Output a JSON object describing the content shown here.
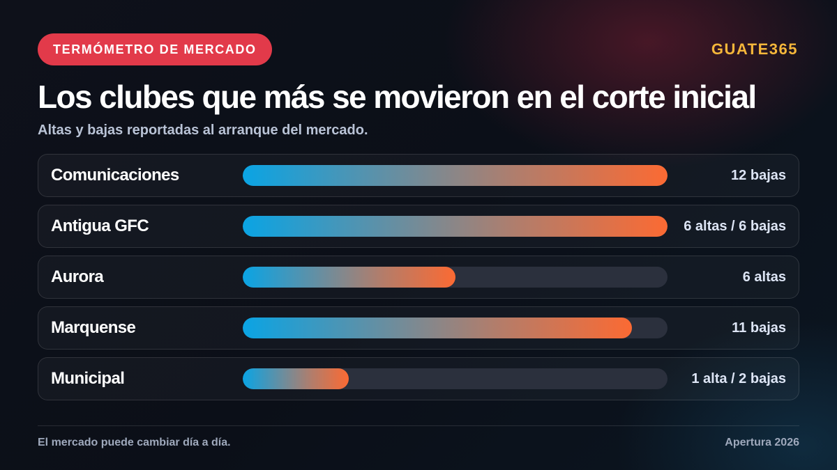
{
  "header": {
    "tag": "TERMÓMETRO DE MERCADO",
    "brand": "GUATE365",
    "title": "Los clubes que más se movieron en el corte inicial",
    "subtitle": "Altas y bajas reportadas al arranque del mercado."
  },
  "chart_data": {
    "type": "bar",
    "orientation": "horizontal",
    "categories": [
      "Comunicaciones",
      "Antigua GFC",
      "Aurora",
      "Marquense",
      "Municipal"
    ],
    "values": [
      12,
      12,
      6,
      11,
      3
    ],
    "value_labels": [
      "12 bajas",
      "6 altas / 6 bajas",
      "6 altas",
      "11 bajas",
      "1 alta / 2 bajas"
    ],
    "xlim": [
      0,
      12
    ],
    "grid": false,
    "legend": "none"
  },
  "footer": {
    "note": "El mercado puede cambiar día a día.",
    "season": "Apertura 2026"
  },
  "colors": {
    "tag_bg": "#e23a4a",
    "brand": "#f6b73a",
    "bar_start": "#0aa4e4",
    "bar_end": "#fb6a33",
    "track": "#2b303d"
  }
}
